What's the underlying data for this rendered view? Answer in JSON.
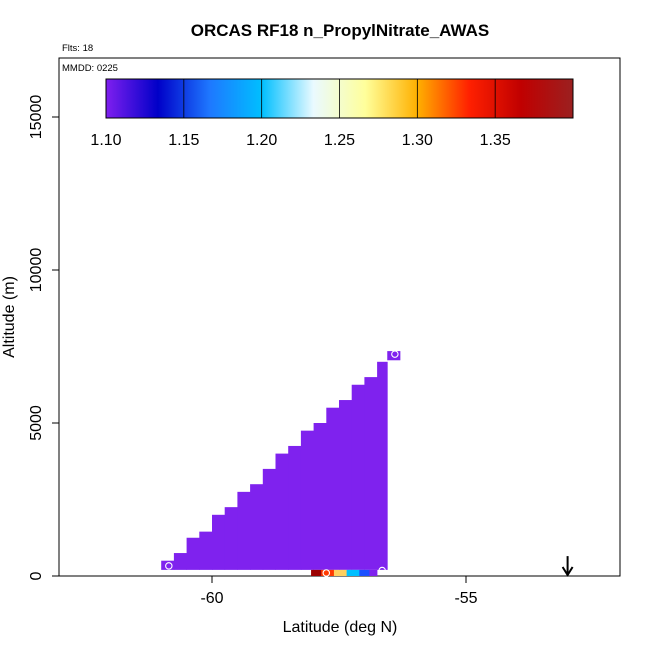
{
  "chart_data": {
    "type": "heatmap",
    "title": "ORCAS RF18 n_PropylNitrate_AWAS",
    "annotations": {
      "flights": "Flts: 18",
      "date": "MMDD: 0225"
    },
    "xlabel": "Latitude (deg N)",
    "ylabel": "Altitude (m)",
    "xlim": [
      -63.0,
      -51.9
    ],
    "ylim": [
      -300,
      17000
    ],
    "xticks": [
      -60,
      -55
    ],
    "xtick_labels": [
      "-60",
      "-55"
    ],
    "yticks": [
      0,
      5000,
      10000,
      15000
    ],
    "ytick_labels": [
      "0",
      "5000",
      "10000",
      "15000"
    ],
    "colorbar": {
      "min": 1.1,
      "max": 1.4,
      "ticks": [
        1.1,
        1.15,
        1.2,
        1.25,
        1.3,
        1.35
      ],
      "tick_labels": [
        "1.10",
        "1.15",
        "1.20",
        "1.25",
        "1.30",
        "1.35"
      ],
      "stops": [
        "#7f1fef",
        "#0000c8",
        "#1e78ff",
        "#00bfff",
        "#eafaff",
        "#ffff9a",
        "#ffb000",
        "#ff2000",
        "#c00000",
        "#9b2020"
      ]
    },
    "cell_color": "#7f22ee",
    "cells": [
      {
        "lat0": -61.0,
        "lat1": -60.75,
        "alt0": 200,
        "alt1": 500
      },
      {
        "lat0": -60.75,
        "lat1": -60.5,
        "alt0": 200,
        "alt1": 750
      },
      {
        "lat0": -60.5,
        "lat1": -60.25,
        "alt0": 200,
        "alt1": 1250
      },
      {
        "lat0": -60.25,
        "lat1": -60.0,
        "alt0": 200,
        "alt1": 1450
      },
      {
        "lat0": -60.0,
        "lat1": -59.75,
        "alt0": 200,
        "alt1": 2000
      },
      {
        "lat0": -59.75,
        "lat1": -59.5,
        "alt0": 200,
        "alt1": 2250
      },
      {
        "lat0": -59.5,
        "lat1": -59.25,
        "alt0": 200,
        "alt1": 2750
      },
      {
        "lat0": -59.25,
        "lat1": -59.0,
        "alt0": 200,
        "alt1": 3000
      },
      {
        "lat0": -59.0,
        "lat1": -58.75,
        "alt0": 200,
        "alt1": 3500
      },
      {
        "lat0": -58.75,
        "lat1": -58.5,
        "alt0": 200,
        "alt1": 4000
      },
      {
        "lat0": -58.5,
        "lat1": -58.25,
        "alt0": 200,
        "alt1": 4250
      },
      {
        "lat0": -58.25,
        "lat1": -58.0,
        "alt0": 200,
        "alt1": 4750
      },
      {
        "lat0": -58.0,
        "lat1": -57.75,
        "alt0": 200,
        "alt1": 5000
      },
      {
        "lat0": -57.75,
        "lat1": -57.5,
        "alt0": 200,
        "alt1": 5500
      },
      {
        "lat0": -57.5,
        "lat1": -57.25,
        "alt0": 200,
        "alt1": 5750
      },
      {
        "lat0": -57.25,
        "lat1": -57.0,
        "alt0": 200,
        "alt1": 6250
      },
      {
        "lat0": -57.0,
        "lat1": -56.75,
        "alt0": 200,
        "alt1": 6500
      },
      {
        "lat0": -56.75,
        "lat1": -56.55,
        "alt0": 200,
        "alt1": 7000
      },
      {
        "lat0": -56.55,
        "lat1": -56.3,
        "alt0": 7050,
        "alt1": 7350
      }
    ],
    "strip_cells": [
      {
        "lat0": -58.05,
        "lat1": -57.85,
        "alt0": 0,
        "alt1": 200,
        "color": "#9b0000"
      },
      {
        "lat0": -57.85,
        "lat1": -57.6,
        "alt0": 0,
        "alt1": 200,
        "color": "#ff3a00"
      },
      {
        "lat0": -57.6,
        "lat1": -57.35,
        "alt0": 0,
        "alt1": 200,
        "color": "#ffd060"
      },
      {
        "lat0": -57.35,
        "lat1": -57.1,
        "alt0": 0,
        "alt1": 200,
        "color": "#00bfff"
      },
      {
        "lat0": -57.1,
        "lat1": -56.9,
        "alt0": 0,
        "alt1": 200,
        "color": "#1a50ff"
      },
      {
        "lat0": -56.9,
        "lat1": -56.75,
        "alt0": 0,
        "alt1": 200,
        "color": "#7f22ee"
      }
    ],
    "samples": [
      {
        "lat": -60.85,
        "alt": 330
      },
      {
        "lat": -57.75,
        "alt": 100
      },
      {
        "lat": -56.65,
        "alt": 180
      },
      {
        "lat": -56.4,
        "alt": 7250
      }
    ],
    "arrow": {
      "lat": -53.0,
      "alt_top": 650,
      "alt_bottom": 0
    }
  }
}
